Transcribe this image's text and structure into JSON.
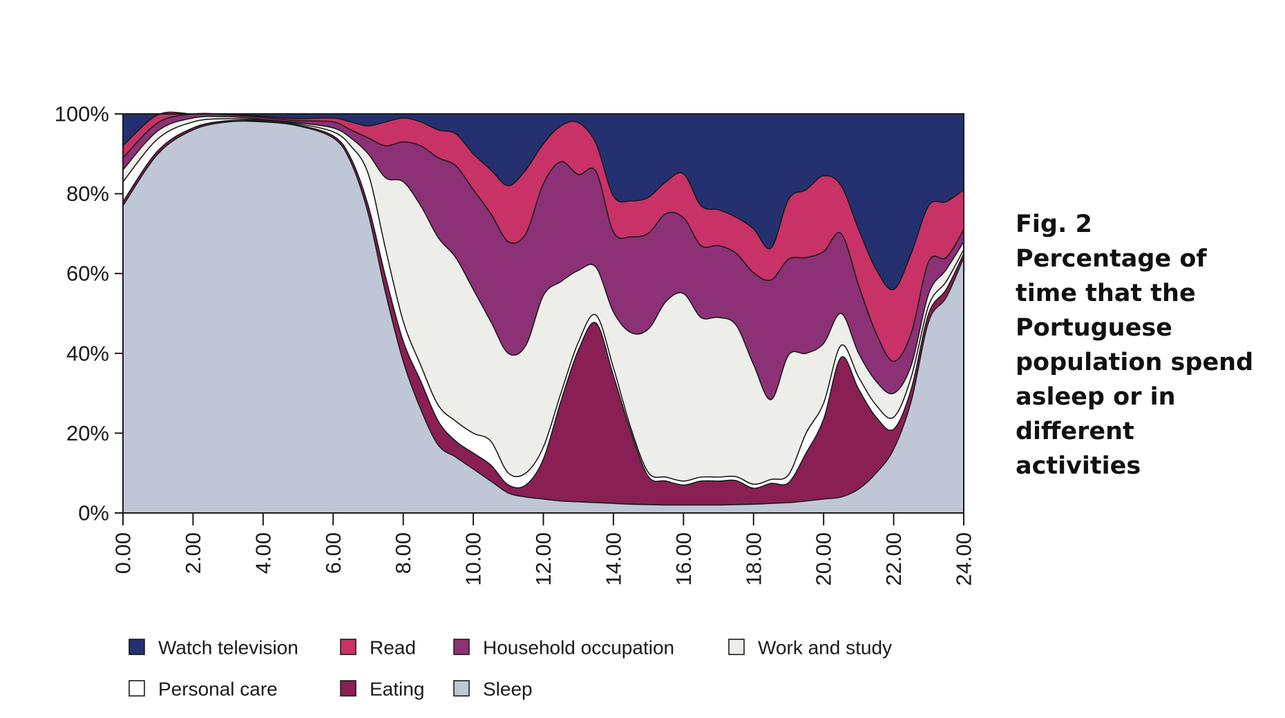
{
  "caption": {
    "fig_label": "Fig. 2",
    "lines": [
      "Percentage of",
      "time that the",
      "Portuguese",
      "population spend",
      "asleep or in",
      "different",
      "activities"
    ]
  },
  "chart_data": {
    "type": "area",
    "stacked": true,
    "title": "Percentage of time that the Portuguese population spend asleep or in different activities",
    "xlabel": "",
    "ylabel": "",
    "xlim": [
      0,
      24
    ],
    "ylim": [
      0,
      100
    ],
    "x_ticks": [
      "0.00",
      "2.00",
      "4.00",
      "6.00",
      "8.00",
      "10.00",
      "12.00",
      "14.00",
      "16.00",
      "18.00",
      "20.00",
      "22.00",
      "24.00"
    ],
    "y_ticks": [
      "0%",
      "20%",
      "40%",
      "60%",
      "80%",
      "100%"
    ],
    "x": [
      0,
      1,
      2,
      3,
      4,
      5,
      6,
      6.5,
      7,
      7.5,
      8,
      8.5,
      9,
      9.5,
      10,
      10.5,
      11,
      11.5,
      12,
      12.5,
      13,
      13.5,
      14,
      14.5,
      15,
      15.5,
      16,
      16.5,
      17,
      17.5,
      18,
      18.5,
      19,
      19.5,
      20,
      20.5,
      21,
      21.5,
      22,
      22.5,
      23,
      23.5,
      24
    ],
    "series": [
      {
        "name": "Sleep",
        "color": "#bfc6d6",
        "values": [
          77,
          90,
          96,
          98,
          98,
          97,
          94,
          88,
          75,
          55,
          38,
          26,
          17,
          14,
          11,
          8,
          5,
          4,
          3.5,
          3,
          2.8,
          2.6,
          2.4,
          2.2,
          2.1,
          2,
          2,
          2,
          2,
          2.1,
          2.2,
          2.4,
          2.6,
          3,
          3.5,
          4,
          6,
          10,
          16,
          28,
          48,
          54,
          64
        ]
      },
      {
        "name": "Eating",
        "color": "#8a1f54",
        "values": [
          1,
          0.8,
          0.5,
          0.3,
          0.2,
          0.2,
          0.5,
          1,
          2,
          4,
          5,
          7,
          6,
          4,
          4,
          4,
          2,
          3,
          10,
          25,
          38,
          45,
          32,
          18,
          7,
          6,
          5,
          6,
          6,
          6,
          4,
          5,
          5,
          12,
          20,
          35,
          25,
          14,
          5,
          3,
          2,
          2,
          1
        ]
      },
      {
        "name": "Personal care",
        "color": "#ffffff",
        "values": [
          5,
          3,
          1.5,
          0.5,
          0.2,
          0.3,
          1,
          3,
          8,
          7,
          5,
          4,
          4,
          5,
          5,
          6,
          3,
          3,
          3,
          2,
          2,
          2,
          2,
          1,
          1,
          1,
          1,
          1,
          1,
          1,
          1,
          1,
          2,
          5,
          4,
          3,
          3,
          3,
          3,
          3,
          2,
          2,
          1
        ]
      },
      {
        "name": "Work and study",
        "color": "#ededea",
        "values": [
          3,
          2,
          1,
          0.5,
          0.2,
          0.3,
          1,
          2,
          5,
          18,
          35,
          40,
          42,
          41,
          36,
          30,
          30,
          32,
          38,
          28,
          18,
          12,
          14,
          24,
          36,
          44,
          47,
          40,
          40,
          38,
          30,
          20,
          30,
          20,
          15,
          8,
          6,
          6,
          6,
          3,
          3,
          3,
          2
        ]
      },
      {
        "name": "Household occupation",
        "color": "#8d3177",
        "values": [
          3,
          2,
          1,
          0.5,
          0.5,
          0.5,
          1.5,
          2,
          4,
          8,
          10,
          15,
          20,
          23,
          25,
          27,
          28,
          28,
          28,
          30,
          24,
          24,
          20,
          24,
          24,
          22,
          19,
          18,
          18,
          18,
          23,
          30,
          24,
          24,
          23,
          20,
          17,
          12,
          8,
          8,
          8,
          3,
          3
        ]
      },
      {
        "name": "Read",
        "color": "#c93266",
        "values": [
          3,
          2,
          1,
          0.3,
          0.3,
          0.5,
          1,
          2,
          3,
          6,
          6,
          6,
          7,
          8,
          9,
          11,
          14,
          16,
          10,
          9,
          13,
          7,
          9,
          9,
          9,
          8,
          11,
          10,
          9,
          9,
          11,
          8,
          15,
          17,
          19,
          12,
          14,
          16,
          18,
          20,
          14,
          14,
          10
        ]
      },
      {
        "name": "Watch television",
        "color": "#253070",
        "values": [
          8,
          5,
          3,
          0.5,
          0.6,
          1.2,
          1,
          2,
          3,
          2,
          1,
          2,
          4,
          5,
          10,
          14,
          18,
          14,
          7.5,
          3,
          2.2,
          7.4,
          20.6,
          21.8,
          20.9,
          19,
          15,
          23,
          24,
          25.9,
          28.8,
          33.6,
          21.4,
          19,
          15.5,
          18,
          29,
          39,
          44,
          35,
          23,
          22,
          19
        ]
      }
    ],
    "legend": {
      "placement": "bottom",
      "order": [
        "Watch television",
        "Read",
        "Household occupation",
        "Work and study",
        "Personal care",
        "Eating",
        "Sleep"
      ]
    },
    "grid": false
  }
}
